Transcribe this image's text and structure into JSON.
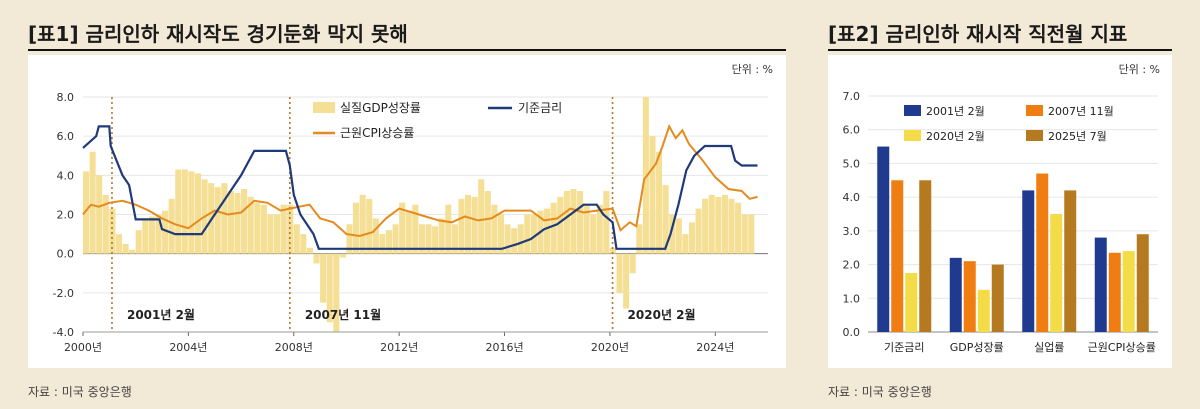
{
  "left": {
    "title": "[표1] 금리인하 재시작도 경기둔화 막지 못해",
    "unit": "단위 : %",
    "source": "자료 : 미국 중앙은행"
  },
  "right": {
    "title": "[표2] 금리인하 재시작 직전월 지표",
    "unit": "단위 : %",
    "source": "자료 : 미국 중앙은행"
  },
  "chart_data": [
    {
      "type": "line",
      "title": "[표1] 금리인하 재시작도 경기둔화 막지 못해",
      "unit": "단위 : %",
      "ylim": [
        -4.0,
        8.0
      ],
      "yticks": [
        "8.0",
        "6.0",
        "4.0",
        "2.0",
        "0.0",
        "-2.0",
        "-4.0"
      ],
      "xlim": [
        2000,
        2026
      ],
      "xticks": [
        {
          "year": 2000,
          "label": "2000년"
        },
        {
          "year": 2004,
          "label": "2004년"
        },
        {
          "year": 2008,
          "label": "2008년"
        },
        {
          "year": 2012,
          "label": "2012년"
        },
        {
          "year": 2016,
          "label": "2016년"
        },
        {
          "year": 2020,
          "label": "2020년"
        },
        {
          "year": 2024,
          "label": "2024년"
        }
      ],
      "legend": {
        "placement": "top",
        "entries": [
          {
            "name": "실질GDP성장률",
            "kind": "bar"
          },
          {
            "name": "기준금리",
            "kind": "line"
          },
          {
            "name": "근원CPI상승률",
            "kind": "line"
          }
        ]
      },
      "markers": [
        {
          "year": 2001.1,
          "label": "2001년 2월"
        },
        {
          "year": 2007.85,
          "label": "2007년 11월"
        },
        {
          "year": 2020.1,
          "label": "2020년 2월"
        }
      ],
      "colors": {
        "gdp": "#f5df94",
        "rate": "#1f3a7a",
        "cpi": "#e58a1f",
        "marker": "#b7752c"
      },
      "series": [
        {
          "name": "실질GDP성장률",
          "kind": "bar",
          "points": [
            [
              2000.0,
              4.2
            ],
            [
              2000.25,
              5.2
            ],
            [
              2000.5,
              4.0
            ],
            [
              2000.75,
              3.0
            ],
            [
              2001.0,
              2.3
            ],
            [
              2001.25,
              1.0
            ],
            [
              2001.5,
              0.5
            ],
            [
              2001.75,
              0.2
            ],
            [
              2002.0,
              1.2
            ],
            [
              2002.25,
              1.8
            ],
            [
              2002.5,
              1.9
            ],
            [
              2002.75,
              2.0
            ],
            [
              2003.0,
              2.2
            ],
            [
              2003.25,
              2.8
            ],
            [
              2003.5,
              4.3
            ],
            [
              2003.75,
              4.3
            ],
            [
              2004.0,
              4.2
            ],
            [
              2004.25,
              4.1
            ],
            [
              2004.5,
              3.8
            ],
            [
              2004.75,
              3.6
            ],
            [
              2005.0,
              3.4
            ],
            [
              2005.25,
              3.6
            ],
            [
              2005.5,
              3.2
            ],
            [
              2005.75,
              3.1
            ],
            [
              2006.0,
              3.3
            ],
            [
              2006.25,
              2.9
            ],
            [
              2006.5,
              2.6
            ],
            [
              2006.75,
              2.5
            ],
            [
              2007.0,
              2.0
            ],
            [
              2007.25,
              2.0
            ],
            [
              2007.5,
              2.5
            ],
            [
              2007.75,
              2.5
            ],
            [
              2008.0,
              1.5
            ],
            [
              2008.25,
              1.0
            ],
            [
              2008.5,
              0.3
            ],
            [
              2008.75,
              -0.5
            ],
            [
              2009.0,
              -2.5
            ],
            [
              2009.25,
              -3.5
            ],
            [
              2009.5,
              -4.0
            ],
            [
              2009.75,
              -0.2
            ],
            [
              2010.0,
              1.5
            ],
            [
              2010.25,
              2.6
            ],
            [
              2010.5,
              3.0
            ],
            [
              2010.75,
              2.8
            ],
            [
              2011.0,
              1.8
            ],
            [
              2011.25,
              1.0
            ],
            [
              2011.5,
              1.2
            ],
            [
              2011.75,
              1.5
            ],
            [
              2012.0,
              2.6
            ],
            [
              2012.25,
              2.2
            ],
            [
              2012.5,
              2.5
            ],
            [
              2012.75,
              1.5
            ],
            [
              2013.0,
              1.5
            ],
            [
              2013.25,
              1.4
            ],
            [
              2013.5,
              1.8
            ],
            [
              2013.75,
              2.5
            ],
            [
              2014.0,
              1.5
            ],
            [
              2014.25,
              2.8
            ],
            [
              2014.5,
              3.0
            ],
            [
              2014.75,
              2.9
            ],
            [
              2015.0,
              3.8
            ],
            [
              2015.25,
              3.2
            ],
            [
              2015.5,
              2.5
            ],
            [
              2015.75,
              2.0
            ],
            [
              2016.0,
              1.5
            ],
            [
              2016.25,
              1.3
            ],
            [
              2016.5,
              1.5
            ],
            [
              2016.75,
              2.0
            ],
            [
              2017.0,
              2.0
            ],
            [
              2017.25,
              2.2
            ],
            [
              2017.5,
              2.3
            ],
            [
              2017.75,
              2.6
            ],
            [
              2018.0,
              2.9
            ],
            [
              2018.25,
              3.2
            ],
            [
              2018.5,
              3.3
            ],
            [
              2018.75,
              3.2
            ],
            [
              2019.0,
              2.5
            ],
            [
              2019.25,
              2.0
            ],
            [
              2019.5,
              2.5
            ],
            [
              2019.75,
              3.2
            ],
            [
              2020.0,
              0.3
            ],
            [
              2020.25,
              -2.0
            ],
            [
              2020.5,
              -2.8
            ],
            [
              2020.75,
              -1.0
            ],
            [
              2021.0,
              1.5
            ],
            [
              2021.25,
              8.0
            ],
            [
              2021.5,
              6.0
            ],
            [
              2021.75,
              5.2
            ],
            [
              2022.0,
              3.5
            ],
            [
              2022.25,
              2.0
            ],
            [
              2022.5,
              1.8
            ],
            [
              2022.75,
              1.0
            ],
            [
              2023.0,
              1.6
            ],
            [
              2023.25,
              2.3
            ],
            [
              2023.5,
              2.8
            ],
            [
              2023.75,
              3.0
            ],
            [
              2024.0,
              2.9
            ],
            [
              2024.25,
              3.0
            ],
            [
              2024.5,
              2.8
            ],
            [
              2024.75,
              2.6
            ],
            [
              2025.0,
              2.0
            ],
            [
              2025.25,
              2.0
            ]
          ]
        },
        {
          "name": "기준금리",
          "kind": "line",
          "points": [
            [
              2000.0,
              5.4
            ],
            [
              2000.5,
              6.0
            ],
            [
              2000.6,
              6.5
            ],
            [
              2001.0,
              6.5
            ],
            [
              2001.05,
              5.5
            ],
            [
              2001.5,
              4.0
            ],
            [
              2001.75,
              3.5
            ],
            [
              2002.0,
              1.75
            ],
            [
              2002.9,
              1.75
            ],
            [
              2003.0,
              1.25
            ],
            [
              2003.5,
              1.0
            ],
            [
              2004.5,
              1.0
            ],
            [
              2005.0,
              2.0
            ],
            [
              2005.5,
              3.0
            ],
            [
              2006.0,
              4.0
            ],
            [
              2006.5,
              5.25
            ],
            [
              2007.7,
              5.25
            ],
            [
              2007.85,
              4.5
            ],
            [
              2008.0,
              3.0
            ],
            [
              2008.25,
              2.0
            ],
            [
              2008.75,
              1.0
            ],
            [
              2008.95,
              0.25
            ],
            [
              2015.9,
              0.25
            ],
            [
              2016.5,
              0.5
            ],
            [
              2017.0,
              0.75
            ],
            [
              2017.5,
              1.25
            ],
            [
              2018.0,
              1.5
            ],
            [
              2018.5,
              2.0
            ],
            [
              2019.0,
              2.5
            ],
            [
              2019.5,
              2.5
            ],
            [
              2019.75,
              2.0
            ],
            [
              2020.1,
              1.6
            ],
            [
              2020.25,
              0.25
            ],
            [
              2022.1,
              0.25
            ],
            [
              2022.3,
              1.0
            ],
            [
              2022.6,
              2.5
            ],
            [
              2022.9,
              4.25
            ],
            [
              2023.2,
              5.0
            ],
            [
              2023.6,
              5.5
            ],
            [
              2024.6,
              5.5
            ],
            [
              2024.75,
              4.75
            ],
            [
              2025.0,
              4.5
            ],
            [
              2025.6,
              4.5
            ]
          ]
        },
        {
          "name": "근원CPI상승률",
          "kind": "line",
          "points": [
            [
              2000.0,
              2.0
            ],
            [
              2000.3,
              2.5
            ],
            [
              2000.6,
              2.4
            ],
            [
              2001.0,
              2.6
            ],
            [
              2001.5,
              2.7
            ],
            [
              2002.0,
              2.5
            ],
            [
              2002.5,
              2.2
            ],
            [
              2003.0,
              1.8
            ],
            [
              2003.5,
              1.5
            ],
            [
              2004.0,
              1.3
            ],
            [
              2004.5,
              1.8
            ],
            [
              2005.0,
              2.2
            ],
            [
              2005.5,
              2.0
            ],
            [
              2006.0,
              2.1
            ],
            [
              2006.5,
              2.7
            ],
            [
              2007.0,
              2.6
            ],
            [
              2007.5,
              2.2
            ],
            [
              2007.85,
              2.3
            ],
            [
              2008.2,
              2.4
            ],
            [
              2008.6,
              2.5
            ],
            [
              2009.0,
              1.8
            ],
            [
              2009.5,
              1.6
            ],
            [
              2010.0,
              1.0
            ],
            [
              2010.5,
              0.9
            ],
            [
              2011.0,
              1.1
            ],
            [
              2011.5,
              1.8
            ],
            [
              2012.0,
              2.3
            ],
            [
              2012.5,
              2.1
            ],
            [
              2013.0,
              1.9
            ],
            [
              2013.5,
              1.7
            ],
            [
              2014.0,
              1.6
            ],
            [
              2014.5,
              1.9
            ],
            [
              2015.0,
              1.7
            ],
            [
              2015.5,
              1.8
            ],
            [
              2016.0,
              2.2
            ],
            [
              2016.5,
              2.2
            ],
            [
              2017.0,
              2.2
            ],
            [
              2017.5,
              1.7
            ],
            [
              2018.0,
              1.8
            ],
            [
              2018.5,
              2.3
            ],
            [
              2019.0,
              2.1
            ],
            [
              2019.5,
              2.2
            ],
            [
              2020.1,
              2.3
            ],
            [
              2020.4,
              1.2
            ],
            [
              2020.75,
              1.6
            ],
            [
              2021.0,
              1.4
            ],
            [
              2021.3,
              3.8
            ],
            [
              2021.75,
              4.6
            ],
            [
              2022.0,
              5.5
            ],
            [
              2022.25,
              6.5
            ],
            [
              2022.5,
              5.9
            ],
            [
              2022.75,
              6.3
            ],
            [
              2023.0,
              5.6
            ],
            [
              2023.5,
              4.8
            ],
            [
              2024.0,
              3.9
            ],
            [
              2024.5,
              3.3
            ],
            [
              2025.0,
              3.2
            ],
            [
              2025.3,
              2.8
            ],
            [
              2025.6,
              2.9
            ]
          ]
        }
      ]
    },
    {
      "type": "bar",
      "title": "[표2] 금리인하 재시작 직전월 지표",
      "unit": "단위 : %",
      "ylim": [
        0.0,
        7.0
      ],
      "yticks": [
        "7.0",
        "6.0",
        "5.0",
        "4.0",
        "3.0",
        "2.0",
        "1.0",
        "0.0"
      ],
      "categories": [
        "기준금리",
        "GDP성장률",
        "실업률",
        "근원CPI상승률"
      ],
      "legend": {
        "placement": "top"
      },
      "series": [
        {
          "name": "2001년 2월",
          "color": "#1f3a8f",
          "values": [
            5.5,
            2.2,
            4.2,
            2.8
          ]
        },
        {
          "name": "2007년 11월",
          "color": "#ef7d12",
          "values": [
            4.5,
            2.1,
            4.7,
            2.35
          ]
        },
        {
          "name": "2020년 2월",
          "color": "#f4dc48",
          "values": [
            1.75,
            1.25,
            3.5,
            2.4
          ]
        },
        {
          "name": "2025년 7월",
          "color": "#b5791f",
          "values": [
            4.5,
            2.0,
            4.2,
            2.9
          ]
        }
      ]
    }
  ]
}
